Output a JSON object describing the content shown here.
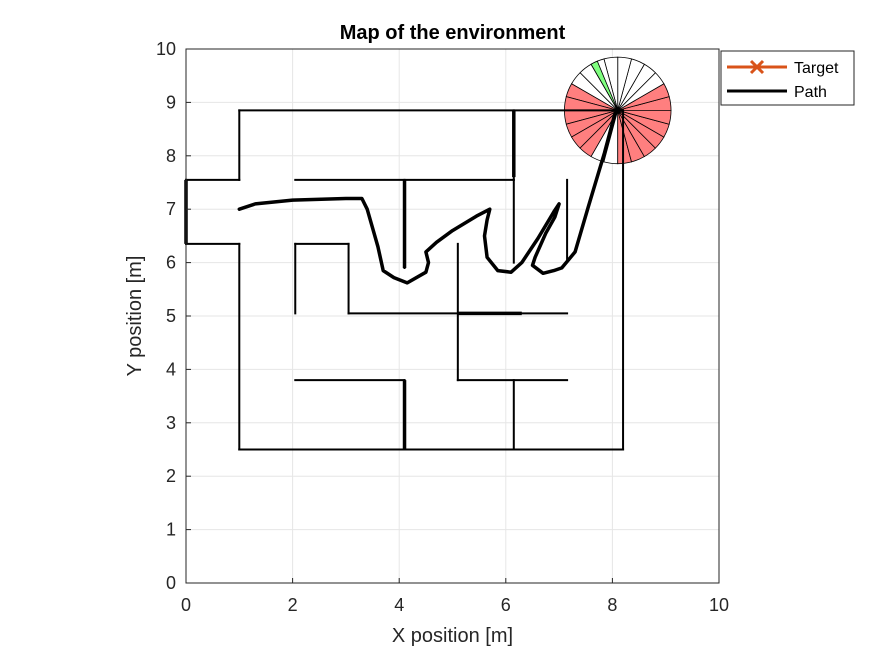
{
  "chart_data": {
    "type": "line",
    "title": "Map of the environment",
    "xlabel": "X position [m]",
    "ylabel": "Y position [m]",
    "xlim": [
      0,
      10
    ],
    "ylim": [
      0,
      10
    ],
    "xticks": [
      "0",
      "2",
      "4",
      "6",
      "8",
      "10"
    ],
    "yticks": [
      "0",
      "1",
      "2",
      "3",
      "4",
      "5",
      "6",
      "7",
      "8",
      "9",
      "10"
    ],
    "grid": true,
    "legend_location": "northeast outside",
    "legend": [
      {
        "name": "Target",
        "color": "#D95319",
        "marker": "x"
      },
      {
        "name": "Path",
        "color": "#000000",
        "marker": "none"
      }
    ],
    "colors": {
      "wall": "#000000",
      "path": "#000000",
      "target": "#D95319",
      "sensor_blocked": "#FF7F7F",
      "sensor_clear": "#7FFF7F",
      "grid": "#E6E6E6"
    },
    "walls": [
      [
        [
          1.0,
          8.85
        ],
        [
          8.2,
          8.85
        ]
      ],
      [
        [
          8.2,
          8.85
        ],
        [
          8.2,
          2.5
        ]
      ],
      [
        [
          8.2,
          2.5
        ],
        [
          1.0,
          2.5
        ]
      ],
      [
        [
          1.0,
          2.5
        ],
        [
          1.0,
          6.35
        ]
      ],
      [
        [
          1.0,
          6.35
        ],
        [
          0.0,
          6.35
        ]
      ],
      [
        [
          0.0,
          6.35
        ],
        [
          0.0,
          7.55
        ]
      ],
      [
        [
          0.0,
          7.55
        ],
        [
          1.0,
          7.55
        ]
      ],
      [
        [
          1.0,
          7.55
        ],
        [
          1.0,
          8.85
        ]
      ],
      [
        [
          2.05,
          7.55
        ],
        [
          6.15,
          7.55
        ]
      ],
      [
        [
          6.15,
          8.85
        ],
        [
          6.15,
          7.55
        ]
      ],
      [
        [
          4.1,
          7.55
        ],
        [
          4.1,
          5.9
        ]
      ],
      [
        [
          6.15,
          7.55
        ],
        [
          6.15,
          6.0
        ]
      ],
      [
        [
          7.15,
          7.55
        ],
        [
          7.15,
          6.05
        ]
      ],
      [
        [
          2.05,
          6.35
        ],
        [
          3.05,
          6.35
        ]
      ],
      [
        [
          2.05,
          6.35
        ],
        [
          2.05,
          5.05
        ]
      ],
      [
        [
          3.05,
          6.35
        ],
        [
          3.05,
          5.05
        ]
      ],
      [
        [
          3.05,
          5.05
        ],
        [
          7.15,
          5.05
        ]
      ],
      [
        [
          5.1,
          6.35
        ],
        [
          5.1,
          3.8
        ]
      ],
      [
        [
          5.1,
          3.8
        ],
        [
          7.15,
          3.8
        ]
      ],
      [
        [
          2.05,
          3.8
        ],
        [
          4.1,
          3.8
        ]
      ],
      [
        [
          4.1,
          3.8
        ],
        [
          4.1,
          2.5
        ]
      ],
      [
        [
          6.15,
          3.8
        ],
        [
          6.15,
          2.5
        ]
      ]
    ],
    "path": [
      [
        1.0,
        7.0
      ],
      [
        1.3,
        7.1
      ],
      [
        2.0,
        7.17
      ],
      [
        3.0,
        7.2
      ],
      [
        3.3,
        7.2
      ],
      [
        3.4,
        7.0
      ],
      [
        3.6,
        6.3
      ],
      [
        3.7,
        5.85
      ],
      [
        3.9,
        5.72
      ],
      [
        4.15,
        5.62
      ],
      [
        4.5,
        5.82
      ],
      [
        4.55,
        6.0
      ],
      [
        4.5,
        6.2
      ],
      [
        4.7,
        6.38
      ],
      [
        5.0,
        6.6
      ],
      [
        5.45,
        6.87
      ],
      [
        5.7,
        7.0
      ],
      [
        5.65,
        6.8
      ],
      [
        5.6,
        6.5
      ],
      [
        5.65,
        6.1
      ],
      [
        5.85,
        5.85
      ],
      [
        6.1,
        5.82
      ],
      [
        6.3,
        6.0
      ],
      [
        6.6,
        6.45
      ],
      [
        6.9,
        6.95
      ],
      [
        7.0,
        7.1
      ],
      [
        6.92,
        6.85
      ],
      [
        6.75,
        6.55
      ],
      [
        6.55,
        6.1
      ],
      [
        6.5,
        5.95
      ],
      [
        6.7,
        5.8
      ],
      [
        6.9,
        5.85
      ],
      [
        7.05,
        5.9
      ],
      [
        7.3,
        6.2
      ],
      [
        7.55,
        7.05
      ],
      [
        7.85,
        8.05
      ],
      [
        8.05,
        8.8
      ]
    ],
    "robot": {
      "x": 8.1,
      "y": 8.85,
      "sensor_radius": 1.0,
      "sectors": 24
    },
    "sensor_blocked_angles_deg": [
      -90,
      -75,
      -60,
      -45,
      -30,
      -15,
      0,
      15,
      150,
      165,
      180,
      195,
      210,
      225
    ],
    "sensor_clear_angles_deg": [
      112.5,
      120
    ]
  }
}
